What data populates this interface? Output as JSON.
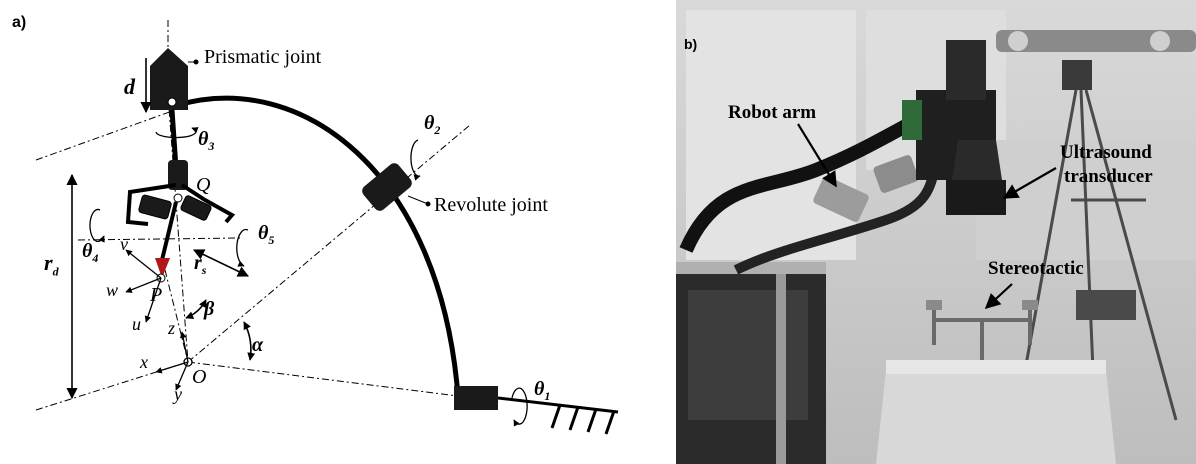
{
  "panel_a": {
    "tag": "a)",
    "labels": {
      "prismatic": "Prismatic joint",
      "revolute": "Revolute joint",
      "d": "d",
      "theta1": "θ",
      "theta1_sub": "1",
      "theta2": "θ",
      "theta2_sub": "2",
      "theta3": "θ",
      "theta3_sub": "3",
      "theta4": "θ",
      "theta4_sub": "4",
      "theta5": "θ",
      "theta5_sub": "5",
      "Q": "Q",
      "P": "P",
      "O": "O",
      "u": "u",
      "v": "v",
      "w": "w",
      "x": "x",
      "y": "y",
      "z": "z",
      "rd": "r",
      "rd_sub": "d",
      "rs": "r",
      "rs_sub": "s",
      "alpha": "α",
      "beta": "β"
    }
  },
  "panel_b": {
    "tag": "b)",
    "labels": {
      "robot_arm": "Robot arm",
      "ultrasound_1": "Ultrasound",
      "ultrasound_2": "transducer",
      "stereotactic": "Stereotactic"
    }
  }
}
